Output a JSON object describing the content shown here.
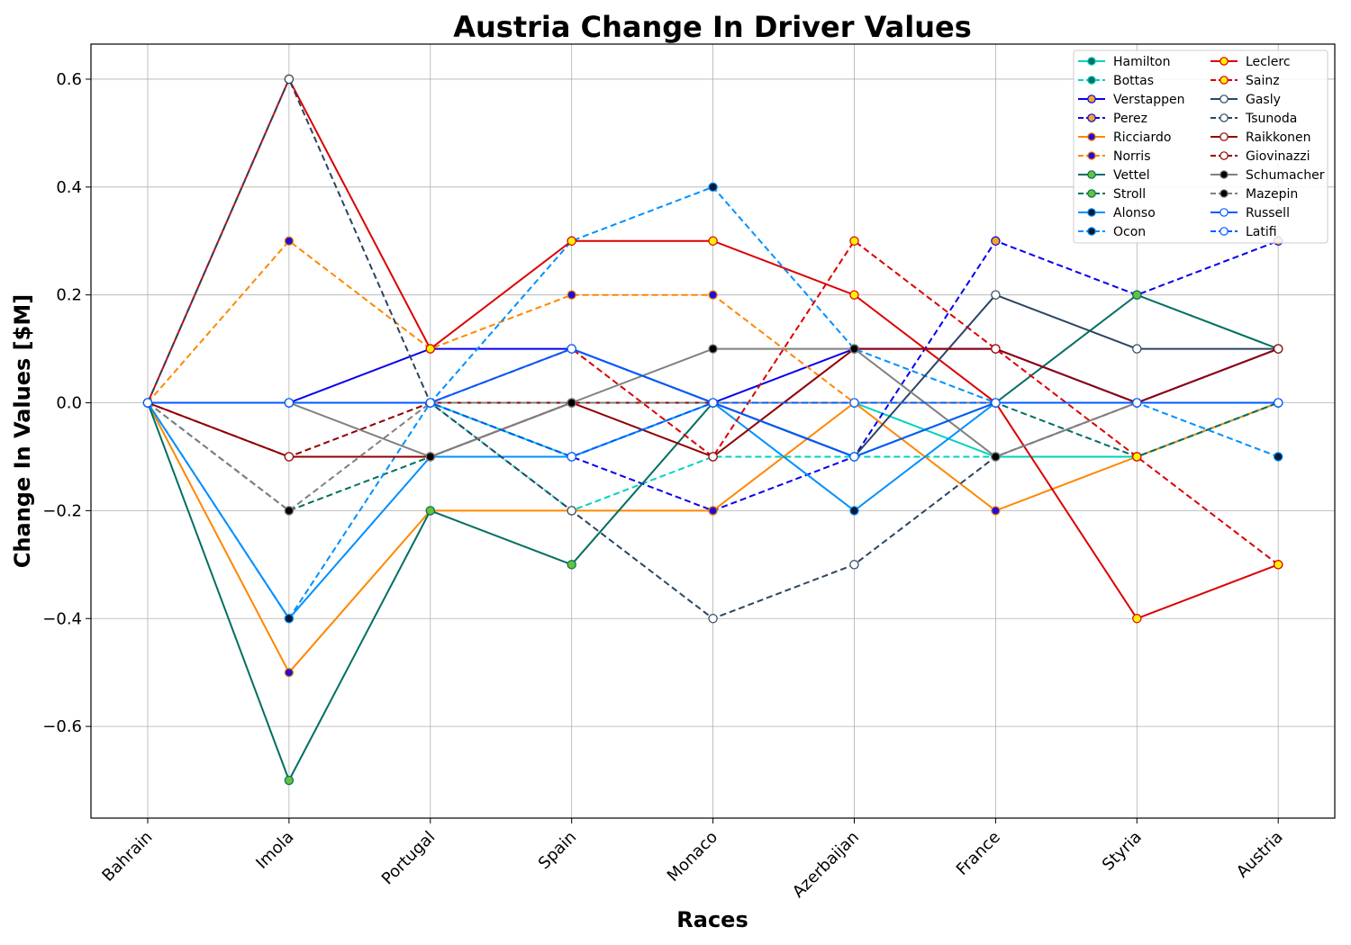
{
  "chart_data": {
    "type": "line",
    "title": "Austria Change In Driver Values",
    "xlabel": "Races",
    "ylabel": "Change In Values [$M]",
    "categories": [
      "Bahrain",
      "Imola",
      "Portugal",
      "Spain",
      "Monaco",
      "Azerbaijan",
      "France",
      "Styria",
      "Austria"
    ],
    "ylim": [
      -0.77,
      0.665
    ],
    "yticks": [
      -0.6,
      -0.4,
      -0.2,
      0.0,
      0.2,
      0.4,
      0.6
    ],
    "ytick_labels": [
      "−0.6",
      "−0.4",
      "−0.2",
      "0.0",
      "0.2",
      "0.4",
      "0.6"
    ],
    "grid": true,
    "legend_position": "top-right",
    "series": [
      {
        "name": "Hamilton",
        "color": "#00d2be",
        "dashed": false,
        "marker": "#006f62",
        "values": [
          0,
          0,
          0,
          -0.1,
          0,
          0,
          -0.1,
          -0.1,
          0
        ]
      },
      {
        "name": "Bottas",
        "color": "#00d2be",
        "dashed": true,
        "marker": "#006f62",
        "values": [
          0,
          0,
          0,
          -0.2,
          -0.1,
          -0.1,
          -0.1,
          -0.1,
          0
        ]
      },
      {
        "name": "Verstappen",
        "color": "#0600ef",
        "dashed": false,
        "marker": "#f5a623",
        "values": [
          0,
          0,
          0.1,
          0.1,
          0,
          0.1,
          0.1,
          0,
          0.1
        ]
      },
      {
        "name": "Perez",
        "color": "#0600ef",
        "dashed": true,
        "marker": "#f5a623",
        "values": [
          0,
          0,
          0,
          -0.1,
          -0.2,
          -0.1,
          0.3,
          0.2,
          0.3
        ]
      },
      {
        "name": "Ricciardo",
        "color": "#ff8700",
        "dashed": false,
        "marker": "#1f0fd6",
        "values": [
          0,
          -0.5,
          -0.2,
          -0.2,
          -0.2,
          0,
          -0.2,
          -0.1,
          0
        ]
      },
      {
        "name": "Norris",
        "color": "#ff8700",
        "dashed": true,
        "marker": "#1f0fd6",
        "values": [
          0,
          0.3,
          0.1,
          0.2,
          0.2,
          0,
          0,
          0,
          0
        ]
      },
      {
        "name": "Vettel",
        "color": "#006f62",
        "dashed": false,
        "marker": "#67c23a",
        "values": [
          0,
          -0.7,
          -0.2,
          -0.3,
          0,
          -0.1,
          0,
          0.2,
          0.1
        ]
      },
      {
        "name": "Stroll",
        "color": "#006f62",
        "dashed": true,
        "marker": "#67c23a",
        "values": [
          0,
          -0.2,
          -0.1,
          0,
          0,
          0,
          0,
          -0.1,
          0
        ]
      },
      {
        "name": "Alonso",
        "color": "#0090ff",
        "dashed": false,
        "marker": "#0a1a33",
        "values": [
          0,
          -0.4,
          -0.1,
          -0.1,
          0,
          -0.2,
          0,
          0,
          0
        ]
      },
      {
        "name": "Ocon",
        "color": "#0090ff",
        "dashed": true,
        "marker": "#0a1a33",
        "values": [
          0,
          -0.4,
          0,
          0.3,
          0.4,
          0.1,
          0,
          0,
          -0.1
        ]
      },
      {
        "name": "Leclerc",
        "color": "#dc0000",
        "dashed": false,
        "marker": "#fff200",
        "values": [
          0,
          0.6,
          0.1,
          0.3,
          0.3,
          0.2,
          0,
          -0.4,
          -0.3
        ]
      },
      {
        "name": "Sainz",
        "color": "#dc0000",
        "dashed": true,
        "marker": "#fff200",
        "values": [
          0,
          0,
          0,
          0.1,
          -0.1,
          0.3,
          0.1,
          -0.1,
          -0.3
        ]
      },
      {
        "name": "Gasly",
        "color": "#2b4562",
        "dashed": false,
        "marker": "#ffffff",
        "values": [
          0,
          0,
          0,
          0,
          0,
          -0.1,
          0.2,
          0.1,
          0.1
        ]
      },
      {
        "name": "Tsunoda",
        "color": "#2b4562",
        "dashed": true,
        "marker": "#ffffff",
        "values": [
          0,
          0.6,
          0,
          -0.2,
          -0.4,
          -0.3,
          -0.1,
          0,
          0
        ]
      },
      {
        "name": "Raikkonen",
        "color": "#900000",
        "dashed": false,
        "marker": "#ffffff",
        "values": [
          0,
          -0.1,
          -0.1,
          0,
          -0.1,
          0.1,
          0.1,
          0,
          0.1
        ]
      },
      {
        "name": "Giovinazzi",
        "color": "#900000",
        "dashed": true,
        "marker": "#ffffff",
        "values": [
          0,
          -0.1,
          0,
          0,
          0,
          0,
          0,
          0,
          0
        ]
      },
      {
        "name": "Schumacher",
        "color": "#808080",
        "dashed": false,
        "marker": "#000000",
        "values": [
          0,
          0,
          -0.1,
          0,
          0.1,
          0.1,
          -0.1,
          0,
          0
        ]
      },
      {
        "name": "Mazepin",
        "color": "#808080",
        "dashed": true,
        "marker": "#000000",
        "values": [
          0,
          -0.2,
          0,
          0,
          0,
          0,
          0,
          0,
          0
        ]
      },
      {
        "name": "Russell",
        "color": "#005aff",
        "dashed": false,
        "marker": "#ffffff",
        "values": [
          0,
          0,
          0,
          0.1,
          0,
          -0.1,
          0,
          0,
          0
        ]
      },
      {
        "name": "Latifi",
        "color": "#005aff",
        "dashed": true,
        "marker": "#ffffff",
        "values": [
          0,
          0,
          0,
          -0.1,
          0,
          0,
          0,
          0,
          0
        ]
      }
    ]
  }
}
